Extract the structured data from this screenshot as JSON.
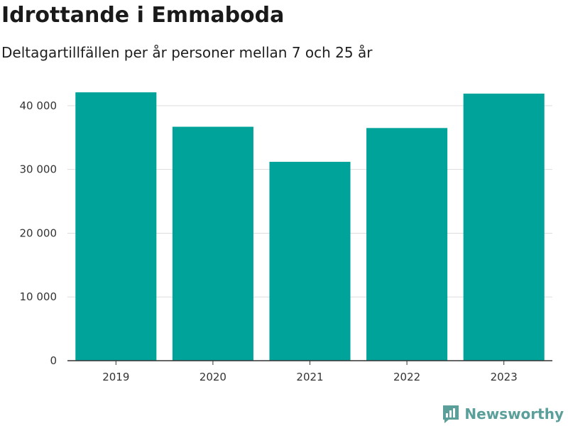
{
  "header": {
    "title": "Idrottande i Emmaboda",
    "subtitle": "Deltagartillfällen per år personer mellan 7 och 25 år"
  },
  "brand": {
    "name": "Newsworthy",
    "icon": "newsworthy-logo-icon",
    "color": "#5a9f9a"
  },
  "chart_data": {
    "type": "bar",
    "categories": [
      "2019",
      "2020",
      "2021",
      "2022",
      "2023"
    ],
    "values": [
      42100,
      36700,
      31200,
      36500,
      41900
    ],
    "ylim": [
      0,
      45000
    ],
    "yticks": [
      0,
      10000,
      20000,
      30000,
      40000
    ],
    "ytick_labels": [
      "0",
      "10 000",
      "20 000",
      "30 000",
      "40 000"
    ],
    "bar_color": "#00a39a",
    "grid": true,
    "legend": "none"
  }
}
